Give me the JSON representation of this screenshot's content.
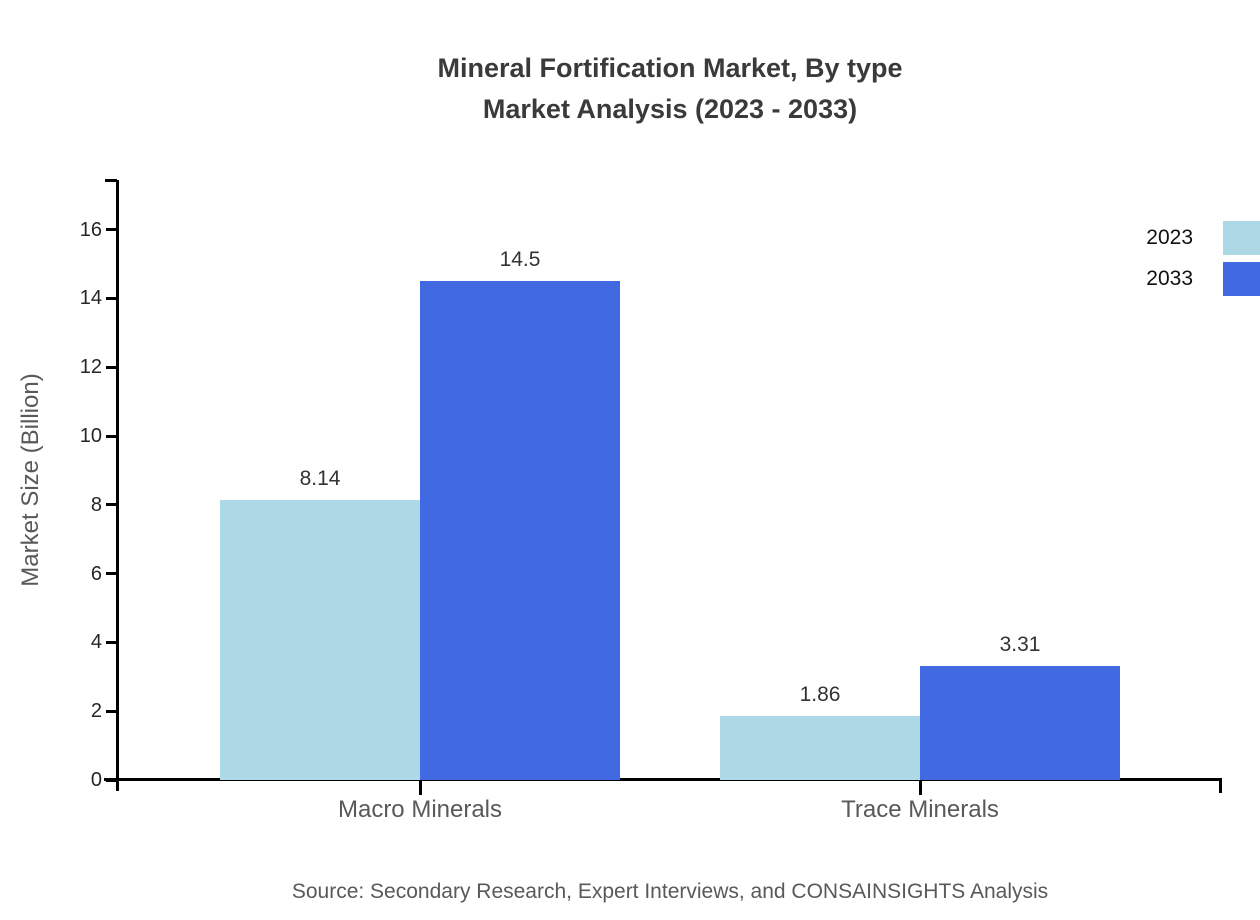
{
  "title": {
    "line1": "Mineral Fortification Market, By type",
    "line2": "Market Analysis (2023 - 2033)"
  },
  "source": "Source: Secondary Research, Expert Interviews, and CONSAINSIGHTS Analysis",
  "chart_data": {
    "type": "bar",
    "categories": [
      "Macro Minerals",
      "Trace Minerals"
    ],
    "series": [
      {
        "name": "2023",
        "color": "#ADD8E6",
        "values": [
          8.14,
          1.86
        ],
        "labels": [
          "8.14",
          "1.86"
        ]
      },
      {
        "name": "2033",
        "color": "#4169E1",
        "values": [
          14.5,
          3.31
        ],
        "labels": [
          "14.5",
          "3.31"
        ]
      }
    ],
    "title": "Mineral Fortification Market, By type Market Analysis (2023 - 2033)",
    "xlabel": "",
    "ylabel": "Market Size (Billion)",
    "ylim": [
      0,
      17.45
    ],
    "yticks": [
      0,
      2,
      4,
      6,
      8,
      10,
      12,
      14,
      16
    ],
    "grid": false,
    "legend_position": "top-right",
    "axis_color": "#000000"
  },
  "legend": {
    "items": [
      {
        "label": "2023",
        "color": "#ADD8E6"
      },
      {
        "label": "2033",
        "color": "#4169E1"
      }
    ]
  }
}
